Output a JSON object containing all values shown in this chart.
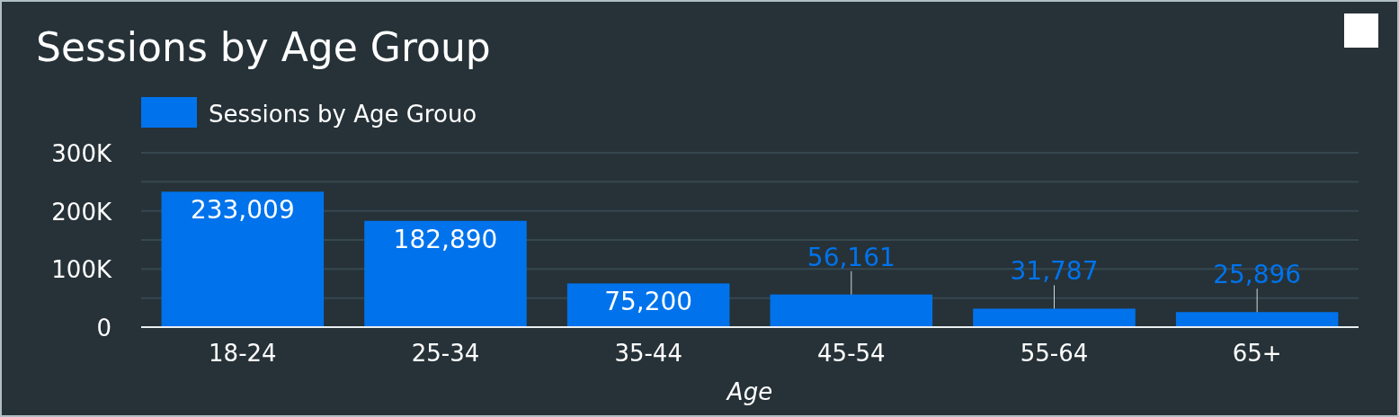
{
  "chart_data": {
    "type": "bar",
    "title": "Sessions by Age Group",
    "xlabel": "Age",
    "categories": [
      "18-24",
      "25-34",
      "35-44",
      "45-54",
      "55-64",
      "65+"
    ],
    "series": [
      {
        "name": "Sessions by Age Grouo",
        "color": "#0073ec",
        "values": [
          233009,
          182890,
          75200,
          56161,
          31787,
          25896
        ],
        "value_labels": [
          "233,009",
          "182,890",
          "75,200",
          "56,161",
          "31,787",
          "25,896"
        ]
      }
    ],
    "ylim": [
      0,
      300000
    ],
    "yticks": [
      {
        "value": 0,
        "label": "0"
      },
      {
        "value": 50000,
        "label": null
      },
      {
        "value": 100000,
        "label": "100K"
      },
      {
        "value": 150000,
        "label": null
      },
      {
        "value": 200000,
        "label": "200K"
      },
      {
        "value": 250000,
        "label": null
      },
      {
        "value": 300000,
        "label": "300K"
      }
    ],
    "grid": "y",
    "legend": "top left"
  }
}
